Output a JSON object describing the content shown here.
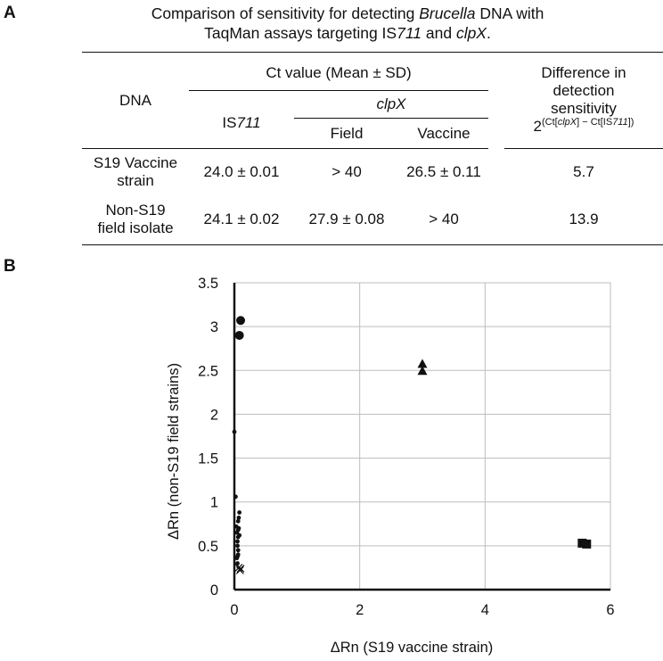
{
  "panel_a_label": "A",
  "panel_b_label": "B",
  "caption": {
    "line1_pre": "Comparison of sensitivity for detecting ",
    "line1_italic": "Brucella",
    "line1_post": " DNA with",
    "line2_pre": "TaqMan assays targeting IS",
    "line2_italic1": "711",
    "line2_mid": " and ",
    "line2_italic2": "clpX",
    "line2_post": "."
  },
  "table": {
    "dna_header": "DNA",
    "ct_header": "Ct value (Mean ± SD)",
    "is711_prefix": "IS",
    "is711_italic": "711",
    "clpx_header": "clpX",
    "field_header": "Field",
    "vaccine_header": "Vaccine",
    "diff_header_line1": "Difference in",
    "diff_header_line2": "detection",
    "diff_header_line3": "sensitivity",
    "diff_formula_base": "2",
    "diff_formula_sup_1": "(Ct[",
    "diff_formula_sup_2": "clpX",
    "diff_formula_sup_3": "] − Ct[IS",
    "diff_formula_sup_4": "711",
    "diff_formula_sup_5": "])",
    "rows": [
      {
        "dna_line1": "S19 Vaccine",
        "dna_line2": "strain",
        "is711": "24.0 ± 0.01",
        "field": "> 40",
        "vaccine": "26.5 ± 0.11",
        "diff": "5.7"
      },
      {
        "dna_line1": "Non-S19",
        "dna_line2": "field isolate",
        "is711": "24.1 ± 0.02",
        "field": "27.9 ± 0.08",
        "vaccine": "> 40",
        "diff": "13.9"
      }
    ]
  },
  "chart_data": {
    "type": "scatter",
    "xlabel": "ΔRn (S19 vaccine strain)",
    "ylabel": "ΔRn (non-S19 field strains)",
    "xlim": [
      0,
      6
    ],
    "ylim": [
      0,
      3.5
    ],
    "xticks": [
      "0",
      "2",
      "4",
      "6"
    ],
    "yticks": [
      "0",
      "0.5",
      "1",
      "1.5",
      "2",
      "2.5",
      "3",
      "3.5"
    ],
    "grid": true,
    "series": [
      {
        "marker": "circle-large",
        "x": [
          0.1,
          0.08
        ],
        "y": [
          3.07,
          2.9
        ]
      },
      {
        "marker": "triangle",
        "x": [
          3.0,
          3.0
        ],
        "y": [
          2.57,
          2.49
        ]
      },
      {
        "marker": "square",
        "x": [
          5.55,
          5.62
        ],
        "y": [
          0.53,
          0.52
        ]
      },
      {
        "marker": "cross",
        "x": [
          0.07,
          0.09,
          0.1
        ],
        "y": [
          0.25,
          0.22,
          0.24
        ]
      },
      {
        "marker": "dot",
        "x": [
          0.0,
          0.02,
          0.03,
          0.04,
          0.05,
          0.06,
          0.06,
          0.05,
          0.07,
          0.08,
          0.06,
          0.05,
          0.07,
          0.04,
          0.06,
          0.05,
          0.08,
          0.06
        ],
        "y": [
          1.8,
          1.06,
          0.72,
          0.65,
          0.55,
          0.45,
          0.4,
          0.38,
          0.82,
          0.88,
          0.6,
          0.5,
          0.7,
          0.36,
          0.78,
          0.3,
          0.62,
          0.68
        ]
      }
    ]
  }
}
